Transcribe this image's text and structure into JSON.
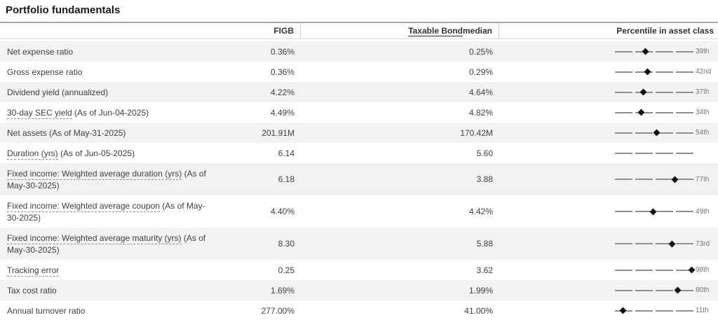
{
  "title": "Portfolio fundamentals",
  "header": {
    "figb": "FIGB",
    "median_term": "Taxable Bond",
    "median_suffix": " median",
    "percentile": "Percentile in asset class"
  },
  "rows": [
    {
      "term": "Net expense ratio",
      "underline": false,
      "suffix": "",
      "figb": "0.36%",
      "median": "0.25%",
      "pct": 39,
      "pct_label": "39th",
      "tall": false
    },
    {
      "term": "Gross expense ratio",
      "underline": false,
      "suffix": "",
      "figb": "0.36%",
      "median": "0.29%",
      "pct": 42,
      "pct_label": "42nd",
      "tall": false
    },
    {
      "term": "Dividend yield (annualized)",
      "underline": false,
      "suffix": "",
      "figb": "4.22%",
      "median": "4.64%",
      "pct": 37,
      "pct_label": "37th",
      "tall": false
    },
    {
      "term": "30-day SEC yield",
      "underline": true,
      "suffix": " (As of Jun-04-2025)",
      "figb": "4.49%",
      "median": "4.82%",
      "pct": 34,
      "pct_label": "34th",
      "tall": false
    },
    {
      "term": "Net assets (As of May-31-2025)",
      "underline": false,
      "suffix": "",
      "figb": "201.91M",
      "median": "170.42M",
      "pct": 54,
      "pct_label": "54th",
      "tall": false
    },
    {
      "term": "Duration (yrs)",
      "underline": true,
      "suffix": " (As of Jun-05-2025)",
      "figb": "6.14",
      "median": "5.60",
      "pct": null,
      "pct_label": "",
      "tall": false
    },
    {
      "term": "Fixed income: Weighted average duration (yrs)",
      "underline": true,
      "suffix": " (As of May-30-2025)",
      "figb": "6.18",
      "median": "3.88",
      "pct": 77,
      "pct_label": "77th",
      "tall": true
    },
    {
      "term": "Fixed income: Weighted average coupon",
      "underline": true,
      "suffix": " (As of May-30-2025)",
      "figb": "4.40%",
      "median": "4.42%",
      "pct": 49,
      "pct_label": "49th",
      "tall": true
    },
    {
      "term": "Fixed income: Weighted average maturity (yrs)",
      "underline": true,
      "suffix": " (As of May-30-2025)",
      "figb": "8.30",
      "median": "5.88",
      "pct": 73,
      "pct_label": "73rd",
      "tall": true
    },
    {
      "term": "Tracking error",
      "underline": true,
      "suffix": "",
      "figb": "0.25",
      "median": "3.62",
      "pct": 98,
      "pct_label": "98th",
      "tall": false
    },
    {
      "term": "Tax cost ratio",
      "underline": false,
      "suffix": "",
      "figb": "1.69%",
      "median": "1.99%",
      "pct": 80,
      "pct_label": "80th",
      "tall": false
    },
    {
      "term": "Annual turnover ratio",
      "underline": false,
      "suffix": "",
      "figb": "277.00%",
      "median": "41.00%",
      "pct": 11,
      "pct_label": "11th",
      "tall": false
    }
  ],
  "chart_meta": {
    "type": "percentile-quartile-track",
    "segments": 4,
    "range": [
      0,
      100
    ]
  },
  "colors": {
    "row_shade": "#f2f2f2",
    "track": "#8f8f8f",
    "marker": "#111111",
    "percentile_label": "#767676"
  }
}
